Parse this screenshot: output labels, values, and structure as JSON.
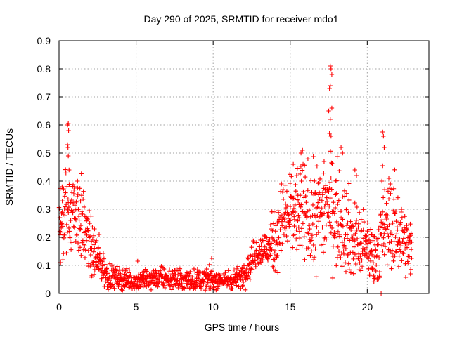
{
  "chart_data": {
    "type": "scatter",
    "title": "Day 290 of 2025, SRMTID for receiver mdo1",
    "xlabel": "GPS time / hours",
    "ylabel": "SRMTID / TECUs",
    "xlim": [
      0,
      24
    ],
    "ylim": [
      0,
      0.9
    ],
    "xticks": [
      0,
      5,
      10,
      15,
      20
    ],
    "xtick_labels": [
      "0",
      "5",
      "10",
      "15",
      "20"
    ],
    "yticks": [
      0,
      0.1,
      0.2,
      0.3,
      0.4,
      0.5,
      0.6,
      0.7,
      0.8,
      0.9
    ],
    "ytick_labels": [
      "0",
      "0.1",
      "0.2",
      "0.3",
      "0.4",
      "0.5",
      "0.6",
      "0.7",
      "0.8",
      "0.9"
    ],
    "grid": true,
    "marker": "+",
    "series": [
      {
        "name": "mdo1",
        "color": "#ff0000",
        "envelope": [
          [
            0.0,
            0.25,
            0.08
          ],
          [
            0.3,
            0.27,
            0.09
          ],
          [
            0.6,
            0.3,
            0.1
          ],
          [
            1.0,
            0.3,
            0.08
          ],
          [
            1.4,
            0.27,
            0.08
          ],
          [
            1.8,
            0.2,
            0.07
          ],
          [
            2.2,
            0.14,
            0.05
          ],
          [
            2.6,
            0.11,
            0.04
          ],
          [
            3.0,
            0.07,
            0.03
          ],
          [
            4.0,
            0.05,
            0.02
          ],
          [
            5.0,
            0.045,
            0.02
          ],
          [
            6.0,
            0.05,
            0.02
          ],
          [
            7.0,
            0.055,
            0.02
          ],
          [
            8.0,
            0.045,
            0.02
          ],
          [
            9.0,
            0.05,
            0.02
          ],
          [
            10.0,
            0.05,
            0.02
          ],
          [
            11.0,
            0.045,
            0.02
          ],
          [
            11.8,
            0.06,
            0.02
          ],
          [
            12.3,
            0.1,
            0.03
          ],
          [
            12.8,
            0.15,
            0.03
          ],
          [
            13.5,
            0.16,
            0.04
          ],
          [
            14.0,
            0.19,
            0.06
          ],
          [
            14.5,
            0.26,
            0.08
          ],
          [
            15.0,
            0.28,
            0.09
          ],
          [
            15.5,
            0.29,
            0.09
          ],
          [
            16.0,
            0.28,
            0.1
          ],
          [
            16.5,
            0.26,
            0.1
          ],
          [
            17.0,
            0.3,
            0.1
          ],
          [
            17.5,
            0.32,
            0.1
          ],
          [
            18.0,
            0.28,
            0.1
          ],
          [
            18.5,
            0.25,
            0.09
          ],
          [
            19.0,
            0.2,
            0.08
          ],
          [
            19.5,
            0.18,
            0.07
          ],
          [
            20.0,
            0.16,
            0.06
          ],
          [
            20.5,
            0.14,
            0.06
          ],
          [
            21.0,
            0.2,
            0.08
          ],
          [
            21.5,
            0.25,
            0.09
          ],
          [
            22.0,
            0.22,
            0.08
          ],
          [
            22.5,
            0.18,
            0.06
          ],
          [
            22.9,
            0.15,
            0.05
          ]
        ],
        "highlights": [
          [
            0.55,
            0.6
          ],
          [
            0.6,
            0.605
          ],
          [
            0.62,
            0.58
          ],
          [
            0.55,
            0.53
          ],
          [
            0.58,
            0.52
          ],
          [
            0.6,
            0.49
          ],
          [
            0.65,
            0.44
          ],
          [
            1.0,
            0.38
          ],
          [
            1.2,
            0.4
          ],
          [
            0.2,
            0.38
          ],
          [
            0.1,
            0.11
          ],
          [
            0.25,
            0.12
          ],
          [
            17.6,
            0.81
          ],
          [
            17.65,
            0.8
          ],
          [
            17.7,
            0.78
          ],
          [
            17.6,
            0.74
          ],
          [
            17.55,
            0.73
          ],
          [
            17.7,
            0.66
          ],
          [
            17.5,
            0.65
          ],
          [
            17.6,
            0.62
          ],
          [
            17.55,
            0.57
          ],
          [
            17.65,
            0.56
          ],
          [
            17.2,
            0.47
          ],
          [
            18.3,
            0.52
          ],
          [
            18.4,
            0.5
          ],
          [
            15.8,
            0.51
          ],
          [
            15.7,
            0.5
          ],
          [
            15.2,
            0.46
          ],
          [
            19.2,
            0.44
          ],
          [
            19.3,
            0.42
          ],
          [
            21.0,
            0.575
          ],
          [
            21.05,
            0.56
          ],
          [
            21.1,
            0.52
          ],
          [
            21.0,
            0.455
          ],
          [
            20.95,
            0.4
          ],
          [
            21.4,
            0.41
          ],
          [
            21.5,
            0.39
          ],
          [
            20.9,
            0.0
          ],
          [
            20.3,
            0.09
          ],
          [
            22.2,
            0.29
          ],
          [
            22.8,
            0.07
          ],
          [
            2.3,
            0.23
          ],
          [
            2.6,
            0.21
          ],
          [
            9.9,
            0.125
          ],
          [
            5.1,
            0.115
          ]
        ]
      }
    ]
  }
}
